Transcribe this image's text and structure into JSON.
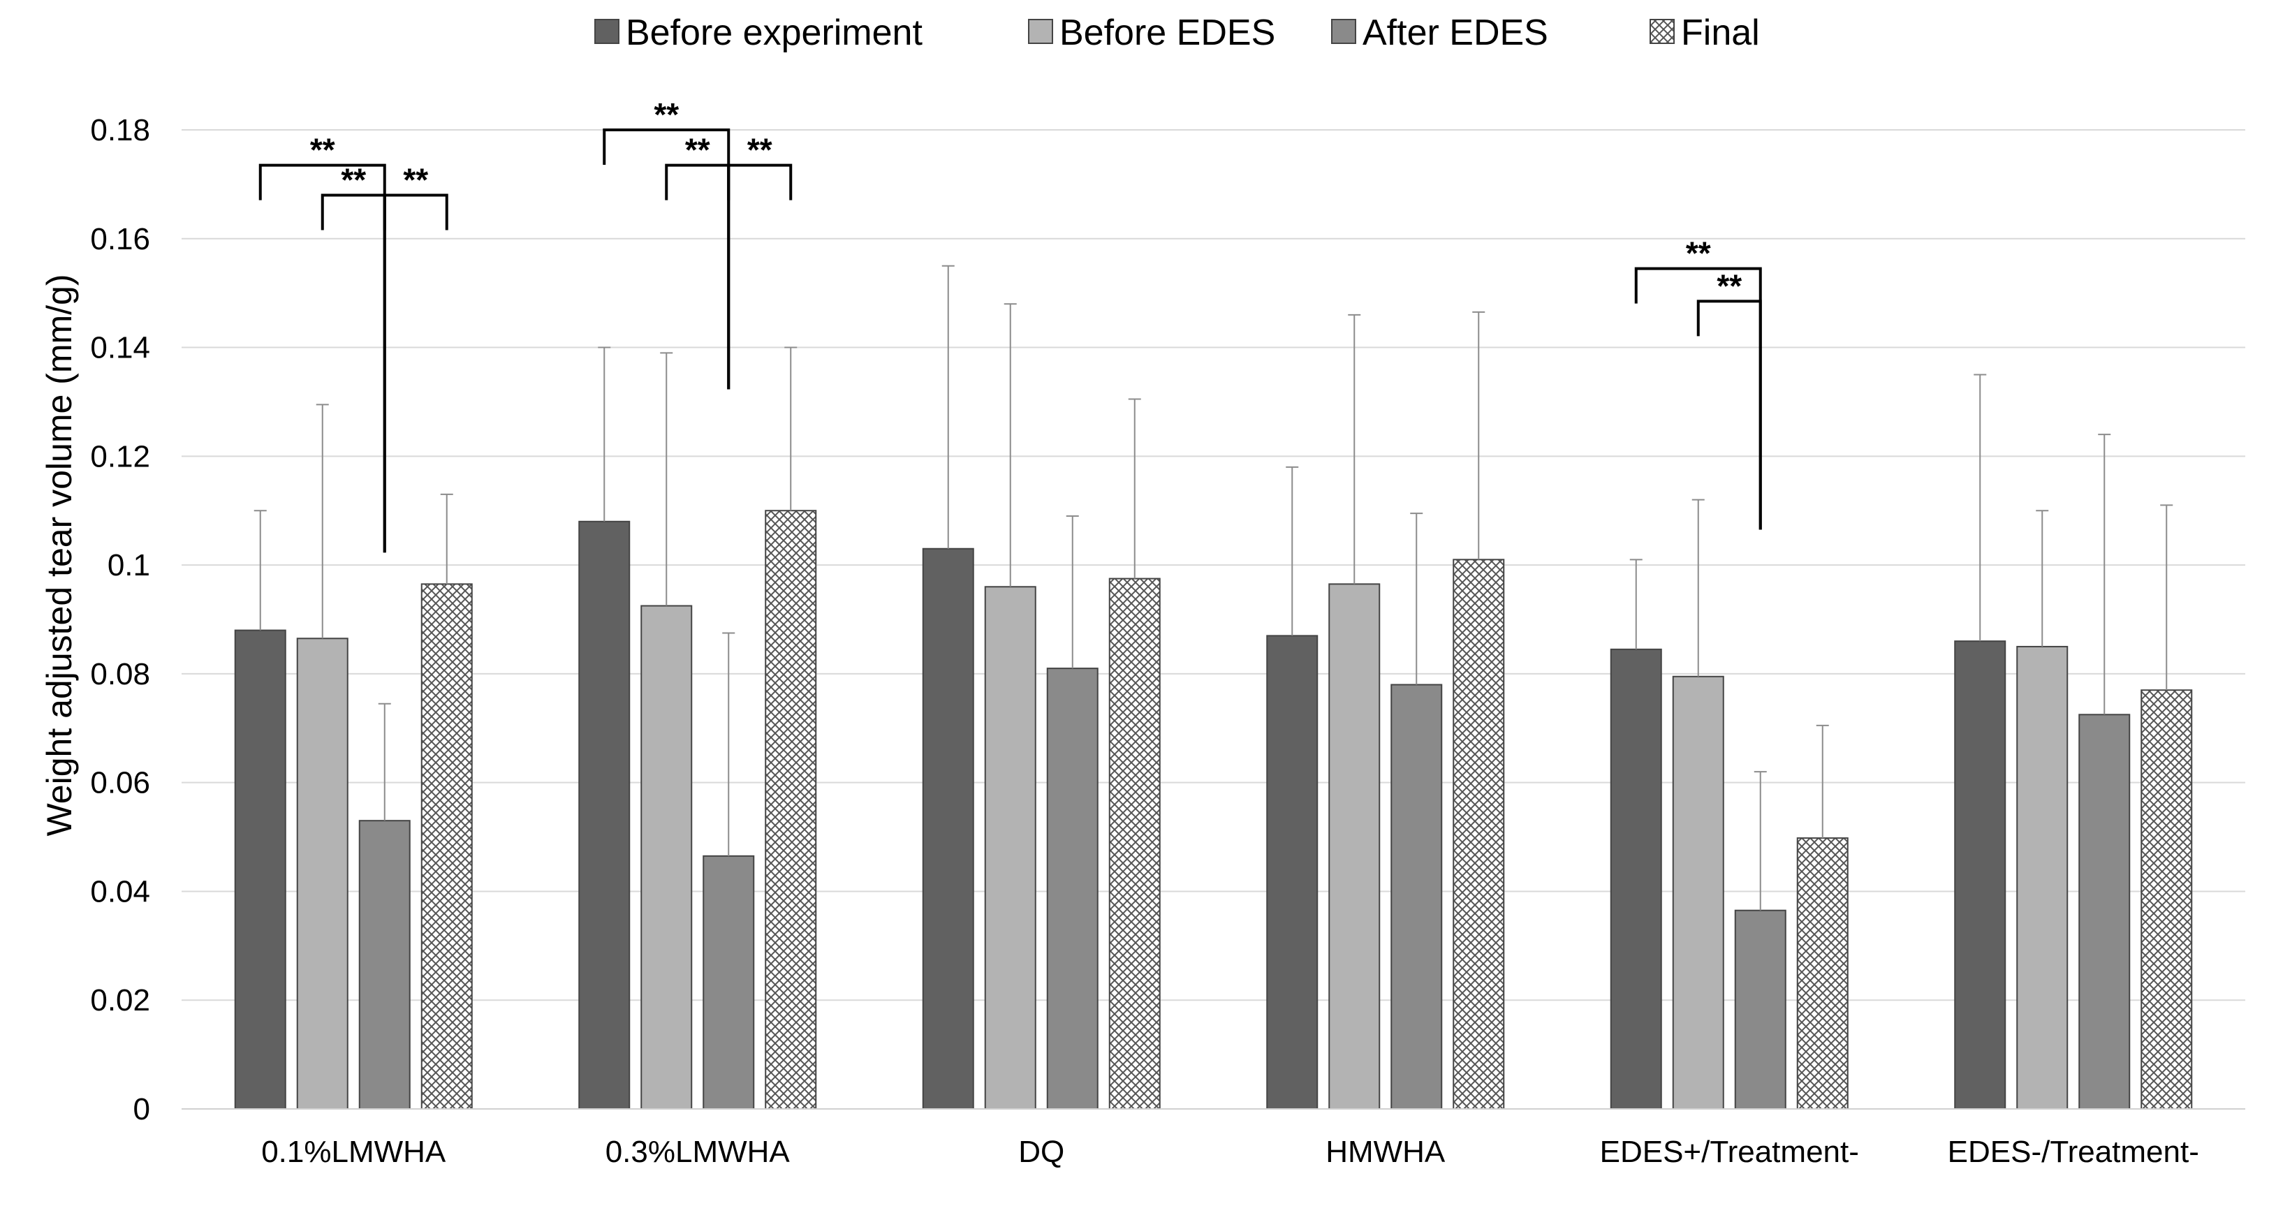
{
  "chart_data": {
    "type": "bar",
    "title": "",
    "xlabel": "",
    "ylabel": "Weight adjusted tear volume (mm/g)",
    "ylim": [
      0,
      0.18
    ],
    "yticks": [
      0,
      0.02,
      0.04,
      0.06,
      0.08,
      0.1,
      0.12,
      0.14,
      0.16,
      0.18
    ],
    "ytick_labels": [
      "0",
      "0.02",
      "0.04",
      "0.06",
      "0.08",
      "0.1",
      "0.12",
      "0.14",
      "0.16",
      "0.18"
    ],
    "grid": true,
    "legend_position": "top-center",
    "error_bars": "upper only (SD)",
    "categories": [
      "0.1%LMWHA",
      "0.3%LMWHA",
      "DQ",
      "HMWHA",
      "EDES+/Treatment-",
      "EDES-/Treatment-"
    ],
    "series": [
      {
        "name": "Before experiment",
        "color": "#616161",
        "pattern": "solid",
        "values": [
          0.088,
          0.108,
          0.103,
          0.087,
          0.0845,
          0.086
        ],
        "errors": [
          0.022,
          0.032,
          0.052,
          0.031,
          0.0165,
          0.049
        ]
      },
      {
        "name": "Before EDES",
        "color": "#b3b3b3",
        "pattern": "solid",
        "values": [
          0.0865,
          0.0925,
          0.096,
          0.0965,
          0.0795,
          0.085
        ],
        "errors": [
          0.043,
          0.0465,
          0.052,
          0.0495,
          0.0325,
          0.025
        ]
      },
      {
        "name": "After EDES",
        "color": "#8a8a8a",
        "pattern": "solid",
        "values": [
          0.053,
          0.0465,
          0.081,
          0.078,
          0.0365,
          0.0725
        ],
        "errors": [
          0.0215,
          0.041,
          0.028,
          0.0315,
          0.0255,
          0.0515
        ]
      },
      {
        "name": "Final",
        "color": "#cccccc",
        "pattern": "crosshatch",
        "values": [
          0.0965,
          0.11,
          0.0975,
          0.101,
          0.0498,
          0.077
        ],
        "errors": [
          0.0165,
          0.03,
          0.033,
          0.0455,
          0.0207,
          0.034
        ]
      }
    ],
    "annotations": {
      "label": "**",
      "comparisons": [
        {
          "category": 0,
          "from_series": 0,
          "to_series": 2,
          "top": 0.1735
        },
        {
          "category": 0,
          "from_series": 1,
          "to_series": 2,
          "top": 0.168
        },
        {
          "category": 0,
          "from_series": 2,
          "to_series": 3,
          "top": 0.168
        },
        {
          "category": 1,
          "from_series": 0,
          "to_series": 2,
          "top": 0.18
        },
        {
          "category": 1,
          "from_series": 1,
          "to_series": 2,
          "top": 0.1735
        },
        {
          "category": 1,
          "from_series": 2,
          "to_series": 3,
          "top": 0.1735
        },
        {
          "category": 4,
          "from_series": 0,
          "to_series": 2,
          "top": 0.1545
        },
        {
          "category": 4,
          "from_series": 1,
          "to_series": 2,
          "top": 0.1485
        }
      ]
    }
  }
}
